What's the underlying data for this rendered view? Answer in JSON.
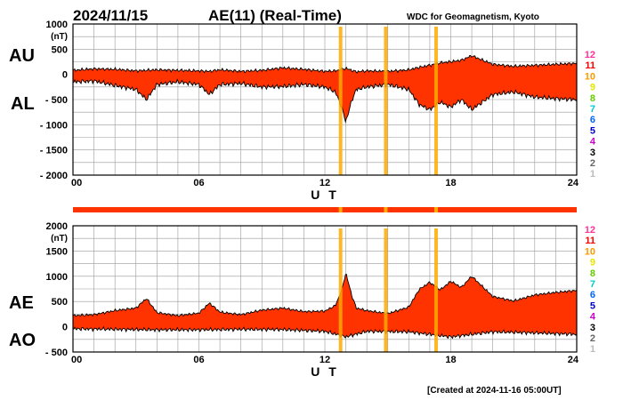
{
  "header": {
    "date": "2024/11/15",
    "title": "AE(11) (Real-Time)",
    "source": "WDC for Geomagnetism, Kyoto"
  },
  "footer": {
    "created": "[Created at 2024-11-16 05:00UT]"
  },
  "colors": {
    "fill": "#ff3300",
    "outline": "#000000",
    "grid": "#999999",
    "stations_marker": "#ffaa00"
  },
  "station_scale": {
    "labels": [
      "12",
      "11",
      "10",
      "9",
      "8",
      "7",
      "6",
      "5",
      "4",
      "3",
      "2",
      "1"
    ],
    "colors": [
      "#ff3399",
      "#ff0000",
      "#ff9900",
      "#e6e600",
      "#66cc00",
      "#00cccc",
      "#0066ff",
      "#0000cc",
      "#cc00cc",
      "#000000",
      "#666666",
      "#bbbbbb"
    ]
  },
  "chart_data": [
    {
      "type": "area",
      "panel": "AU/AL",
      "series_labels": [
        "AU",
        "AL"
      ],
      "unit": "(nT)",
      "xlabel": "U T",
      "xlim": [
        0,
        24
      ],
      "x_ticks": [
        "00",
        "06",
        "12",
        "18",
        "24"
      ],
      "ylim": [
        -2000,
        1000
      ],
      "y_ticks": [
        "1000",
        "500",
        "0",
        "- 500",
        "- 1000",
        "- 1500",
        "- 2000"
      ],
      "grid": true,
      "series": [
        {
          "name": "AU",
          "x": [
            0,
            1,
            2,
            3,
            4,
            5,
            6,
            6.5,
            7,
            8,
            9,
            10,
            11,
            12,
            12.5,
            13,
            13.5,
            14,
            15,
            16,
            16.5,
            17,
            17.5,
            18,
            18.5,
            19,
            20,
            21,
            22,
            23,
            24
          ],
          "values": [
            80,
            110,
            100,
            70,
            90,
            80,
            70,
            60,
            90,
            60,
            80,
            130,
            100,
            60,
            70,
            120,
            50,
            70,
            60,
            90,
            140,
            180,
            230,
            250,
            280,
            370,
            200,
            160,
            180,
            200,
            220
          ]
        },
        {
          "name": "AL",
          "x": [
            0,
            1,
            2,
            3,
            3.5,
            4,
            5,
            6,
            6.5,
            7,
            8,
            9,
            10,
            11,
            12,
            12.5,
            12.8,
            13,
            13.3,
            13.5,
            14,
            15,
            16,
            16.5,
            17,
            17.5,
            18,
            18.5,
            19,
            20,
            21,
            22,
            23,
            24
          ],
          "values": [
            -150,
            -130,
            -220,
            -300,
            -500,
            -200,
            -150,
            -200,
            -400,
            -200,
            -180,
            -250,
            -240,
            -200,
            -250,
            -350,
            -650,
            -940,
            -500,
            -300,
            -250,
            -200,
            -300,
            -600,
            -700,
            -550,
            -650,
            -500,
            -700,
            -400,
            -350,
            -450,
            -480,
            -500
          ]
        }
      ]
    },
    {
      "type": "area",
      "panel": "AE/AO",
      "series_labels": [
        "AE",
        "AO"
      ],
      "unit": "(nT)",
      "xlabel": "U T",
      "xlim": [
        0,
        24
      ],
      "x_ticks": [
        "00",
        "06",
        "12",
        "18",
        "24"
      ],
      "ylim": [
        -500,
        2000
      ],
      "y_ticks": [
        "2000",
        "1500",
        "1000",
        "500",
        "0",
        "- 500"
      ],
      "grid": true,
      "series": [
        {
          "name": "AE",
          "x": [
            0,
            1,
            2,
            3,
            3.5,
            4,
            5,
            6,
            6.5,
            7,
            8,
            9,
            10,
            11,
            12,
            12.5,
            12.8,
            13,
            13.3,
            13.5,
            14,
            15,
            16,
            16.5,
            17,
            17.5,
            18,
            18.5,
            19,
            20,
            21,
            22,
            23,
            24
          ],
          "values": [
            220,
            240,
            320,
            370,
            560,
            280,
            220,
            270,
            470,
            290,
            240,
            330,
            370,
            300,
            310,
            420,
            720,
            1060,
            600,
            370,
            320,
            260,
            390,
            740,
            880,
            730,
            900,
            780,
            1000,
            600,
            510,
            630,
            680,
            720
          ]
        },
        {
          "name": "AO",
          "x": [
            0,
            2,
            4,
            6,
            8,
            10,
            12,
            13,
            14,
            16,
            18,
            20,
            22,
            24
          ],
          "values": [
            -40,
            -50,
            -60,
            -60,
            -50,
            -55,
            -90,
            -200,
            -90,
            -100,
            -200,
            -100,
            -120,
            -150
          ]
        }
      ]
    }
  ]
}
